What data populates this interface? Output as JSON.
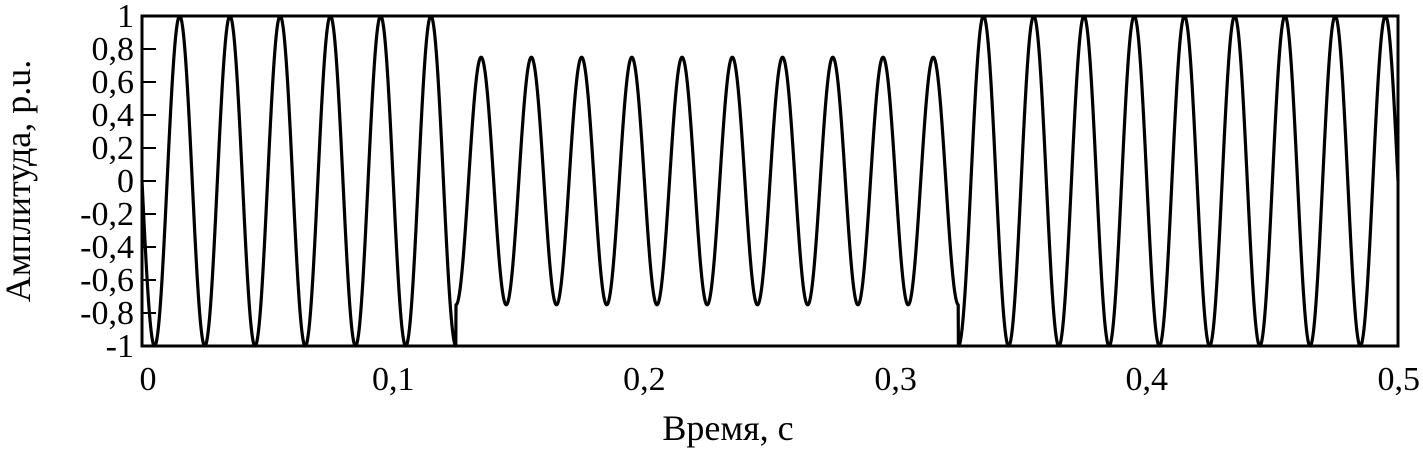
{
  "chart_data": {
    "type": "line",
    "title": "",
    "xlabel": "Время, с",
    "ylabel": "Амплитуда, p.u.",
    "xlim": [
      0,
      0.5
    ],
    "ylim": [
      -1,
      1
    ],
    "xticks": [
      0,
      0.1,
      0.2,
      0.3,
      0.4,
      0.5
    ],
    "xtick_labels": [
      "0",
      "0,1",
      "0,2",
      "0,3",
      "0,4",
      "0,5"
    ],
    "yticks": [
      1,
      0.8,
      0.6,
      0.4,
      0.2,
      0,
      -0.2,
      -0.4,
      -0.6,
      -0.8,
      -1
    ],
    "ytick_labels": [
      "1",
      "0,8",
      "0,6",
      "0,4",
      "0,2",
      "0",
      "-0,2",
      "-0,4",
      "-0,6",
      "-0,8",
      "-1"
    ],
    "grid": false,
    "series": [
      {
        "function": "-A(t)·sin(2π·f·t)",
        "frequency_hz": 50,
        "amplitude_normal": 1,
        "amplitude_sag": 0.75,
        "sag_interval": [
          0.125,
          0.325
        ],
        "color": "#000000"
      }
    ]
  }
}
